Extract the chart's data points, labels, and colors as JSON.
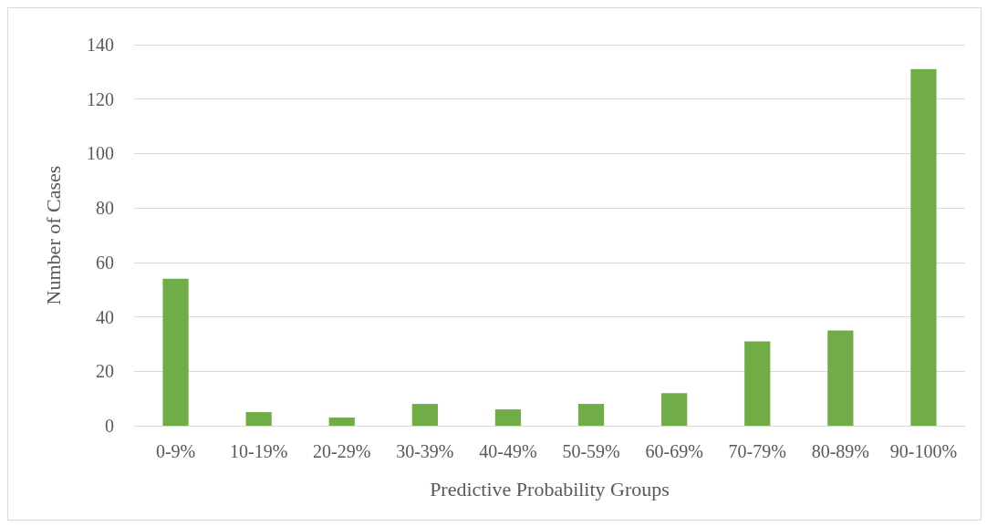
{
  "chart_data": {
    "type": "bar",
    "xlabel": "Predictive Probability Groups",
    "ylabel": "Number of Cases",
    "categories": [
      "0-9%",
      "10-19%",
      "20-29%",
      "30-39%",
      "40-49%",
      "50-59%",
      "60-69%",
      "70-79%",
      "80-89%",
      "90-100%"
    ],
    "values": [
      54,
      5,
      3,
      8,
      6,
      8,
      12,
      31,
      35,
      131
    ],
    "color": "#70ad47",
    "ylim": [
      0,
      140
    ],
    "yticks": [
      0,
      20,
      40,
      60,
      80,
      100,
      120,
      140
    ],
    "grid": "y"
  }
}
